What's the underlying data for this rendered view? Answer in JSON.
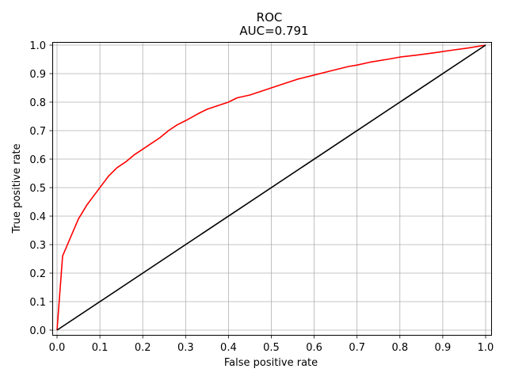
{
  "chart_data": {
    "type": "line",
    "title": "ROC",
    "subtitle": "AUC=0.791",
    "xlabel": "False positive rate",
    "ylabel": "True positive rate",
    "xlim": [
      0,
      1
    ],
    "ylim": [
      0,
      1
    ],
    "xticks": [
      "0.0",
      "0.1",
      "0.2",
      "0.3",
      "0.4",
      "0.5",
      "0.6",
      "0.7",
      "0.8",
      "0.9",
      "1.0"
    ],
    "yticks": [
      "0.0",
      "0.1",
      "0.2",
      "0.3",
      "0.4",
      "0.5",
      "0.6",
      "0.7",
      "0.8",
      "0.9",
      "1.0"
    ],
    "grid": true,
    "series": [
      {
        "color": "#ff0000",
        "x": [
          0.0,
          0.013,
          0.03,
          0.05,
          0.07,
          0.09,
          0.11,
          0.12,
          0.14,
          0.16,
          0.18,
          0.2,
          0.22,
          0.24,
          0.26,
          0.28,
          0.3,
          0.33,
          0.35,
          0.37,
          0.4,
          0.42,
          0.45,
          0.48,
          0.5,
          0.53,
          0.56,
          0.6,
          0.64,
          0.68,
          0.7,
          0.73,
          0.77,
          0.8,
          0.84,
          0.88,
          0.92,
          0.96,
          1.0
        ],
        "y": [
          0.0,
          0.26,
          0.32,
          0.39,
          0.44,
          0.48,
          0.52,
          0.54,
          0.57,
          0.59,
          0.615,
          0.635,
          0.655,
          0.675,
          0.7,
          0.72,
          0.735,
          0.76,
          0.775,
          0.785,
          0.8,
          0.815,
          0.825,
          0.84,
          0.85,
          0.865,
          0.88,
          0.895,
          0.91,
          0.925,
          0.93,
          0.94,
          0.95,
          0.958,
          0.965,
          0.973,
          0.982,
          0.99,
          1.0
        ]
      },
      {
        "color": "#000000",
        "x": [
          0,
          1
        ],
        "y": [
          0,
          1
        ]
      }
    ]
  }
}
